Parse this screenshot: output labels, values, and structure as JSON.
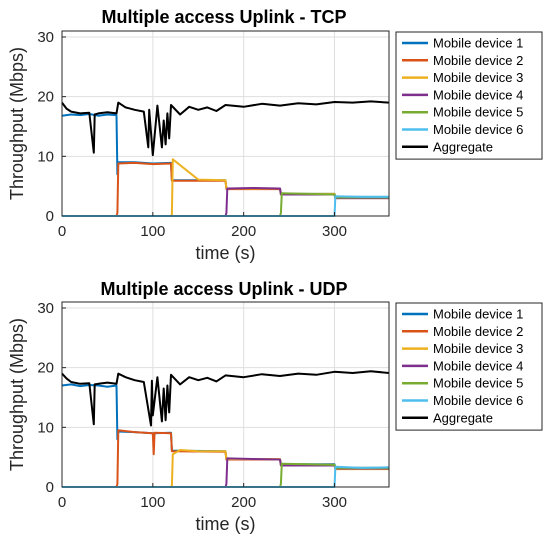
{
  "colors": {
    "Mobile device 1": "#0072BD",
    "Mobile device 2": "#D95319",
    "Mobile device 3": "#EDB120",
    "Mobile device 4": "#7E2F8E",
    "Mobile device 5": "#77AC30",
    "Mobile device 6": "#4DBEEE",
    "Aggregate": "#000000"
  },
  "chart_data": [
    {
      "type": "line",
      "title": "Multiple access Uplink - TCP",
      "xlabel": "time (s)",
      "ylabel": "Throughput (Mbps)",
      "xlim": [
        0,
        360
      ],
      "ylim": [
        0,
        31
      ],
      "xticks": [
        0,
        100,
        200,
        300
      ],
      "yticks": [
        0,
        10,
        20,
        30
      ],
      "grid": true,
      "legend_position": "outside-right",
      "series": [
        {
          "name": "Mobile device 1",
          "x": [
            0,
            10,
            20,
            30,
            40,
            50,
            60,
            61,
            62,
            80,
            100,
            120,
            121,
            180,
            181,
            240,
            241,
            300,
            301,
            360
          ],
          "y": [
            16.8,
            17.0,
            16.9,
            17.1,
            16.8,
            17.0,
            16.9,
            7.0,
            9.0,
            9.0,
            8.8,
            8.9,
            6.0,
            6.0,
            4.6,
            4.6,
            3.7,
            3.7,
            3.2,
            3.2
          ]
        },
        {
          "name": "Mobile device 2",
          "x": [
            0,
            60,
            61,
            62,
            80,
            100,
            120,
            121,
            180,
            181,
            240,
            241,
            300,
            301,
            360
          ],
          "y": [
            0,
            0,
            0.5,
            8.8,
            8.9,
            8.7,
            8.8,
            5.9,
            5.9,
            4.5,
            4.5,
            3.6,
            3.6,
            3.0,
            3.0
          ]
        },
        {
          "name": "Mobile device 3",
          "x": [
            0,
            120,
            121,
            122,
            150,
            180,
            181,
            240,
            241,
            300,
            301,
            360
          ],
          "y": [
            0,
            0,
            0.3,
            9.5,
            6.1,
            6.0,
            4.6,
            4.6,
            3.7,
            3.7,
            3.1,
            3.1
          ]
        },
        {
          "name": "Mobile device 4",
          "x": [
            0,
            180,
            181,
            182,
            210,
            240,
            241,
            300,
            301,
            360
          ],
          "y": [
            0,
            0,
            0.5,
            4.6,
            4.7,
            4.6,
            3.6,
            3.6,
            3.0,
            3.0
          ]
        },
        {
          "name": "Mobile device 5",
          "x": [
            0,
            240,
            241,
            242,
            270,
            300,
            301,
            360
          ],
          "y": [
            0,
            0,
            0.5,
            3.8,
            3.7,
            3.6,
            3.1,
            3.1
          ]
        },
        {
          "name": "Mobile device 6",
          "x": [
            0,
            300,
            301,
            330,
            360
          ],
          "y": [
            0,
            0,
            3.3,
            3.2,
            3.2
          ]
        },
        {
          "name": "Aggregate",
          "x": [
            0,
            5,
            10,
            20,
            30,
            35,
            36,
            40,
            50,
            60,
            62,
            70,
            80,
            90,
            95,
            96,
            100,
            105,
            110,
            112,
            114,
            116,
            118,
            120,
            130,
            140,
            150,
            160,
            170,
            180,
            200,
            220,
            240,
            260,
            280,
            300,
            320,
            340,
            360
          ],
          "y": [
            19.0,
            18.0,
            17.5,
            17.2,
            17.3,
            10.6,
            17.0,
            17.2,
            17.4,
            17.2,
            19.0,
            18.2,
            17.8,
            17.5,
            11.5,
            17.8,
            10.2,
            18.5,
            11.5,
            16.0,
            12.0,
            17.2,
            13.0,
            18.6,
            17.0,
            18.3,
            17.8,
            18.2,
            17.6,
            18.6,
            18.3,
            18.8,
            18.5,
            18.9,
            18.7,
            19.1,
            19.0,
            19.2,
            19.0
          ]
        }
      ]
    },
    {
      "type": "line",
      "title": "Multiple access Uplink - UDP",
      "xlabel": "time (s)",
      "ylabel": "Throughput (Mbps)",
      "xlim": [
        0,
        360
      ],
      "ylim": [
        0,
        31
      ],
      "xticks": [
        0,
        100,
        200,
        300
      ],
      "yticks": [
        0,
        10,
        20,
        30
      ],
      "grid": true,
      "legend_position": "outside-right",
      "series": [
        {
          "name": "Mobile device 1",
          "x": [
            0,
            10,
            20,
            30,
            40,
            50,
            60,
            61,
            62,
            80,
            100,
            120,
            121,
            180,
            181,
            240,
            241,
            300,
            301,
            360
          ],
          "y": [
            17.0,
            17.2,
            16.9,
            17.1,
            17.0,
            16.8,
            17.0,
            8.0,
            9.3,
            9.2,
            9.0,
            9.1,
            6.1,
            6.0,
            4.6,
            4.6,
            3.8,
            3.8,
            3.2,
            3.2
          ]
        },
        {
          "name": "Mobile device 2",
          "x": [
            0,
            60,
            61,
            62,
            80,
            100,
            101,
            102,
            120,
            121,
            180,
            181,
            240,
            241,
            300,
            301,
            360
          ],
          "y": [
            0,
            0,
            0.5,
            9.5,
            9.2,
            9.0,
            5.5,
            9.1,
            9.0,
            6.0,
            5.9,
            4.6,
            4.6,
            3.8,
            3.7,
            3.1,
            3.1
          ]
        },
        {
          "name": "Mobile device 3",
          "x": [
            0,
            120,
            121,
            122,
            130,
            150,
            180,
            181,
            240,
            241,
            300,
            301,
            360
          ],
          "y": [
            0,
            0,
            0.3,
            5.5,
            6.2,
            6.0,
            6.0,
            4.7,
            4.7,
            3.6,
            3.6,
            3.0,
            3.0
          ]
        },
        {
          "name": "Mobile device 4",
          "x": [
            0,
            180,
            181,
            182,
            210,
            240,
            241,
            300,
            301,
            360
          ],
          "y": [
            0,
            0,
            0.5,
            4.8,
            4.7,
            4.6,
            3.6,
            3.6,
            3.1,
            3.1
          ]
        },
        {
          "name": "Mobile device 5",
          "x": [
            0,
            240,
            241,
            242,
            270,
            300,
            301,
            360
          ],
          "y": [
            0,
            0,
            0.5,
            3.9,
            3.8,
            3.7,
            3.2,
            3.2
          ]
        },
        {
          "name": "Mobile device 6",
          "x": [
            0,
            300,
            301,
            330,
            360
          ],
          "y": [
            0,
            0,
            3.4,
            3.2,
            3.3
          ]
        },
        {
          "name": "Aggregate",
          "x": [
            0,
            5,
            10,
            20,
            30,
            35,
            36,
            40,
            50,
            60,
            62,
            70,
            80,
            90,
            98,
            99,
            100,
            105,
            110,
            112,
            114,
            116,
            118,
            120,
            130,
            140,
            150,
            160,
            170,
            180,
            200,
            220,
            240,
            260,
            280,
            300,
            320,
            340,
            360
          ],
          "y": [
            19.0,
            18.2,
            17.6,
            17.3,
            17.4,
            10.5,
            17.2,
            17.3,
            17.5,
            17.3,
            19.0,
            18.4,
            17.9,
            17.6,
            10.3,
            17.8,
            12.0,
            18.4,
            11.0,
            16.5,
            11.2,
            17.0,
            12.5,
            18.8,
            17.2,
            18.4,
            17.9,
            18.3,
            17.7,
            18.7,
            18.4,
            18.9,
            18.6,
            19.0,
            18.8,
            19.3,
            19.1,
            19.4,
            19.1
          ]
        }
      ]
    }
  ]
}
